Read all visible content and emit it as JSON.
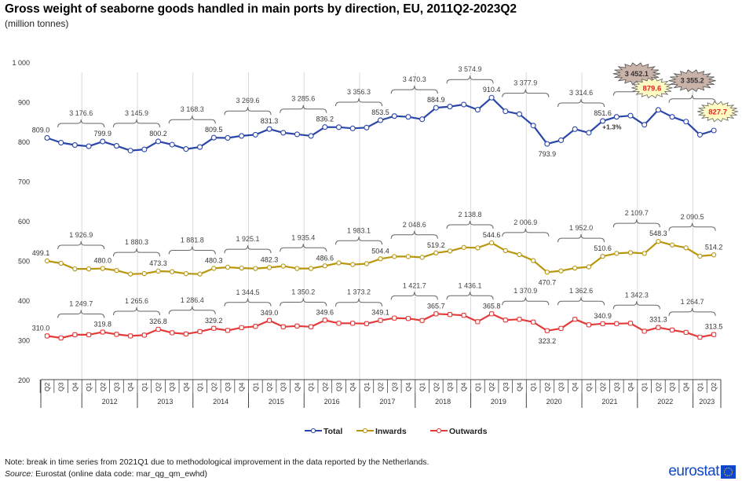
{
  "header": {
    "title": "Gross weight of seaborne goods handled in main ports by direction, EU, 2011Q2-2023Q2",
    "subtitle": "(million tonnes)"
  },
  "footer": {
    "note": "Note: break in time series from 2021Q1 due to methodological improvement in the data reported by the Netherlands.",
    "source_label": "Source:",
    "source_text": " Eurostat (online data code: mar_qg_qm_ewhd)",
    "logo_text": "eurostat"
  },
  "chart_data": {
    "type": "line",
    "title": "Gross weight of seaborne goods handled in main ports by direction, EU, 2011Q2-2023Q2",
    "subtitle": "(million tonnes)",
    "xlabel": "",
    "ylabel": "",
    "ylim": [
      200,
      1000
    ],
    "yticks": [
      200,
      300,
      400,
      500,
      600,
      700,
      800,
      900,
      1000
    ],
    "ytick_labels": [
      "200",
      "300",
      "400",
      "500",
      "600",
      "700",
      "800",
      "900",
      "1 000"
    ],
    "grid": "vertical lines at year boundaries",
    "legend_position": "bottom-center",
    "x": [
      "2011Q2",
      "2011Q3",
      "2011Q4",
      "2012Q1",
      "2012Q2",
      "2012Q3",
      "2012Q4",
      "2013Q1",
      "2013Q2",
      "2013Q3",
      "2013Q4",
      "2014Q1",
      "2014Q2",
      "2014Q3",
      "2014Q4",
      "2015Q1",
      "2015Q2",
      "2015Q3",
      "2015Q4",
      "2016Q1",
      "2016Q2",
      "2016Q3",
      "2016Q4",
      "2017Q1",
      "2017Q2",
      "2017Q3",
      "2017Q4",
      "2018Q1",
      "2018Q2",
      "2018Q3",
      "2018Q4",
      "2019Q1",
      "2019Q2",
      "2019Q3",
      "2019Q4",
      "2020Q1",
      "2020Q2",
      "2020Q3",
      "2020Q4",
      "2021Q1",
      "2021Q2",
      "2021Q3",
      "2021Q4",
      "2022Q1",
      "2022Q2",
      "2022Q3",
      "2022Q4",
      "2023Q1",
      "2023Q2"
    ],
    "quarter_tick_labels": [
      "Q2",
      "Q3",
      "Q4",
      "Q1",
      "Q2",
      "Q3",
      "Q4",
      "Q1",
      "Q2",
      "Q3",
      "Q4",
      "Q1",
      "Q2",
      "Q3",
      "Q4",
      "Q1",
      "Q2",
      "Q3",
      "Q4",
      "Q1",
      "Q2",
      "Q3",
      "Q4",
      "Q1",
      "Q2",
      "Q3",
      "Q4",
      "Q1",
      "Q2",
      "Q3",
      "Q4",
      "Q1",
      "Q2",
      "Q3",
      "Q4",
      "Q1",
      "Q2",
      "Q3",
      "Q4",
      "Q1",
      "Q2",
      "Q3",
      "Q4",
      "Q1",
      "Q2",
      "Q3",
      "Q4",
      "Q1",
      "Q2"
    ],
    "year_tick_labels": [
      {
        "label": "2012",
        "from": 3,
        "to": 6
      },
      {
        "label": "2013",
        "from": 7,
        "to": 10
      },
      {
        "label": "2014",
        "from": 11,
        "to": 14
      },
      {
        "label": "2015",
        "from": 15,
        "to": 18
      },
      {
        "label": "2016",
        "from": 19,
        "to": 22
      },
      {
        "label": "2017",
        "from": 23,
        "to": 26
      },
      {
        "label": "2018",
        "from": 27,
        "to": 30
      },
      {
        "label": "2019",
        "from": 31,
        "to": 34
      },
      {
        "label": "2020",
        "from": 35,
        "to": 38
      },
      {
        "label": "2021",
        "from": 39,
        "to": 42
      },
      {
        "label": "2022",
        "from": 43,
        "to": 46
      },
      {
        "label": "2023",
        "from": 47,
        "to": 48
      }
    ],
    "series": [
      {
        "name": "Total",
        "color": "#2a47a8",
        "values": [
          809.0,
          797,
          791,
          788,
          799.9,
          789,
          777,
          780,
          800.2,
          792,
          781,
          786,
          809.5,
          809,
          814,
          817,
          831.3,
          822,
          818,
          814,
          836.2,
          836,
          833,
          835,
          853.5,
          864,
          862,
          856,
          884.9,
          888,
          893,
          880,
          910.4,
          876,
          869,
          840,
          793.9,
          803,
          831,
          822,
          851.6,
          862,
          865,
          842,
          879.6,
          862,
          850,
          817,
          827.7
        ]
      },
      {
        "name": "Inwards",
        "color": "#b8960e",
        "values": [
          499.1,
          493,
          479,
          479,
          480.0,
          475,
          466,
          467,
          473.3,
          472,
          467,
          466,
          480.3,
          483,
          481,
          480,
          482.3,
          486,
          480,
          480,
          486.6,
          494,
          490,
          492,
          504.4,
          510,
          510,
          508,
          519.2,
          524,
          533,
          532,
          544.6,
          525,
          515,
          500,
          470.7,
          474,
          481,
          484,
          510.6,
          518,
          520,
          518,
          548.3,
          539,
          532,
          511,
          514.2
        ]
      },
      {
        "name": "Outwards",
        "color": "#e33a3a",
        "values": [
          310.0,
          305,
          313,
          313,
          319.8,
          314,
          310,
          312,
          326.8,
          318,
          315,
          321,
          329.2,
          324,
          331,
          334,
          349.0,
          333,
          335,
          333,
          349.6,
          342,
          342,
          341,
          349.1,
          355,
          354,
          349,
          365.7,
          364,
          362,
          346,
          365.8,
          350,
          352,
          345,
          323.2,
          329,
          352,
          338,
          340.9,
          341,
          342,
          322,
          331.3,
          325,
          319,
          307,
          313.5
        ]
      }
    ],
    "point_labels": [
      {
        "series": "Total",
        "index": 0,
        "text": "809.0"
      },
      {
        "series": "Total",
        "index": 4,
        "text": "799.9"
      },
      {
        "series": "Total",
        "index": 8,
        "text": "800.2"
      },
      {
        "series": "Total",
        "index": 12,
        "text": "809.5"
      },
      {
        "series": "Total",
        "index": 16,
        "text": "831.3"
      },
      {
        "series": "Total",
        "index": 20,
        "text": "836.2"
      },
      {
        "series": "Total",
        "index": 24,
        "text": "853.5"
      },
      {
        "series": "Total",
        "index": 28,
        "text": "884.9"
      },
      {
        "series": "Total",
        "index": 32,
        "text": "910.4"
      },
      {
        "series": "Total",
        "index": 36,
        "text": "793.9",
        "below": true
      },
      {
        "series": "Total",
        "index": 40,
        "text": "851.6"
      },
      {
        "series": "Inwards",
        "index": 0,
        "text": "499.1"
      },
      {
        "series": "Inwards",
        "index": 4,
        "text": "480.0"
      },
      {
        "series": "Inwards",
        "index": 8,
        "text": "473.3"
      },
      {
        "series": "Inwards",
        "index": 12,
        "text": "480.3"
      },
      {
        "series": "Inwards",
        "index": 16,
        "text": "482.3"
      },
      {
        "series": "Inwards",
        "index": 20,
        "text": "486.6"
      },
      {
        "series": "Inwards",
        "index": 24,
        "text": "504.4"
      },
      {
        "series": "Inwards",
        "index": 28,
        "text": "519.2"
      },
      {
        "series": "Inwards",
        "index": 32,
        "text": "544.6"
      },
      {
        "series": "Inwards",
        "index": 36,
        "text": "470.7",
        "below": true
      },
      {
        "series": "Inwards",
        "index": 40,
        "text": "510.6"
      },
      {
        "series": "Inwards",
        "index": 44,
        "text": "548.3"
      },
      {
        "series": "Inwards",
        "index": 48,
        "text": "514.2"
      },
      {
        "series": "Outwards",
        "index": 0,
        "text": "310.0"
      },
      {
        "series": "Outwards",
        "index": 4,
        "text": "319.8"
      },
      {
        "series": "Outwards",
        "index": 8,
        "text": "326.8"
      },
      {
        "series": "Outwards",
        "index": 12,
        "text": "329.2"
      },
      {
        "series": "Outwards",
        "index": 16,
        "text": "349.0"
      },
      {
        "series": "Outwards",
        "index": 20,
        "text": "349.6"
      },
      {
        "series": "Outwards",
        "index": 24,
        "text": "349.1"
      },
      {
        "series": "Outwards",
        "index": 28,
        "text": "365.7"
      },
      {
        "series": "Outwards",
        "index": 32,
        "text": "365.8"
      },
      {
        "series": "Outwards",
        "index": 36,
        "text": "323.2",
        "below": true
      },
      {
        "series": "Outwards",
        "index": 40,
        "text": "340.9"
      },
      {
        "series": "Outwards",
        "index": 44,
        "text": "331.3"
      },
      {
        "series": "Outwards",
        "index": 48,
        "text": "313.5"
      }
    ],
    "annual_sums": [
      {
        "series": "Total",
        "from": 1,
        "to": 4,
        "text": "3 176.6"
      },
      {
        "series": "Total",
        "from": 5,
        "to": 8,
        "text": "3 145.9"
      },
      {
        "series": "Total",
        "from": 9,
        "to": 12,
        "text": "3 168.3"
      },
      {
        "series": "Total",
        "from": 13,
        "to": 16,
        "text": "3 269.6"
      },
      {
        "series": "Total",
        "from": 17,
        "to": 20,
        "text": "3 285.6"
      },
      {
        "series": "Total",
        "from": 21,
        "to": 24,
        "text": "3 356.3"
      },
      {
        "series": "Total",
        "from": 25,
        "to": 28,
        "text": "3 470.3"
      },
      {
        "series": "Total",
        "from": 29,
        "to": 32,
        "text": "3 574.9"
      },
      {
        "series": "Total",
        "from": 33,
        "to": 36,
        "text": "3 377.9"
      },
      {
        "series": "Total",
        "from": 37,
        "to": 40,
        "text": "3 314.6"
      },
      {
        "series": "Total",
        "from": 41,
        "to": 44,
        "text": "3 452.1",
        "highlight": true
      },
      {
        "series": "Total",
        "from": 45,
        "to": 48,
        "text": "3 355.2",
        "highlight": true
      },
      {
        "series": "Inwards",
        "from": 1,
        "to": 4,
        "text": "1 926.9"
      },
      {
        "series": "Inwards",
        "from": 5,
        "to": 8,
        "text": "1 880.3"
      },
      {
        "series": "Inwards",
        "from": 9,
        "to": 12,
        "text": "1 881.8"
      },
      {
        "series": "Inwards",
        "from": 13,
        "to": 16,
        "text": "1 925.1"
      },
      {
        "series": "Inwards",
        "from": 17,
        "to": 20,
        "text": "1 935.4"
      },
      {
        "series": "Inwards",
        "from": 21,
        "to": 24,
        "text": "1 983.1"
      },
      {
        "series": "Inwards",
        "from": 25,
        "to": 28,
        "text": "2 048.6"
      },
      {
        "series": "Inwards",
        "from": 29,
        "to": 32,
        "text": "2 138.8"
      },
      {
        "series": "Inwards",
        "from": 33,
        "to": 36,
        "text": "2 006.9"
      },
      {
        "series": "Inwards",
        "from": 37,
        "to": 40,
        "text": "1 952.0"
      },
      {
        "series": "Inwards",
        "from": 41,
        "to": 44,
        "text": "2 109.7"
      },
      {
        "series": "Inwards",
        "from": 45,
        "to": 48,
        "text": "2 090.5"
      },
      {
        "series": "Outwards",
        "from": 1,
        "to": 4,
        "text": "1 249.7"
      },
      {
        "series": "Outwards",
        "from": 5,
        "to": 8,
        "text": "1 265.6"
      },
      {
        "series": "Outwards",
        "from": 9,
        "to": 12,
        "text": "1 286.4"
      },
      {
        "series": "Outwards",
        "from": 13,
        "to": 16,
        "text": "1 344.5"
      },
      {
        "series": "Outwards",
        "from": 17,
        "to": 20,
        "text": "1 350.2"
      },
      {
        "series": "Outwards",
        "from": 21,
        "to": 24,
        "text": "1 373.2"
      },
      {
        "series": "Outwards",
        "from": 25,
        "to": 28,
        "text": "1 421.7"
      },
      {
        "series": "Outwards",
        "from": 29,
        "to": 32,
        "text": "1 436.1"
      },
      {
        "series": "Outwards",
        "from": 33,
        "to": 36,
        "text": "1 370.9"
      },
      {
        "series": "Outwards",
        "from": 37,
        "to": 40,
        "text": "1 362.6"
      },
      {
        "series": "Outwards",
        "from": 41,
        "to": 44,
        "text": "1 342.3"
      },
      {
        "series": "Outwards",
        "from": 45,
        "to": 48,
        "text": "1 264.7"
      }
    ],
    "highlight_labels": [
      {
        "series": "Total",
        "index": 44,
        "text": "879.6"
      },
      {
        "series": "Total",
        "index": 48,
        "text": "827.7"
      }
    ],
    "annotations": [
      {
        "series": "Total",
        "index": 41,
        "text": "+1.3%"
      }
    ],
    "colors": {
      "highlight_value_fill": "#fffbc2",
      "highlight_value_text": "#e8231f",
      "highlight_sum_fill": "#c9b2a8",
      "brace": "#666666",
      "grid": "#d9d9d9"
    }
  }
}
